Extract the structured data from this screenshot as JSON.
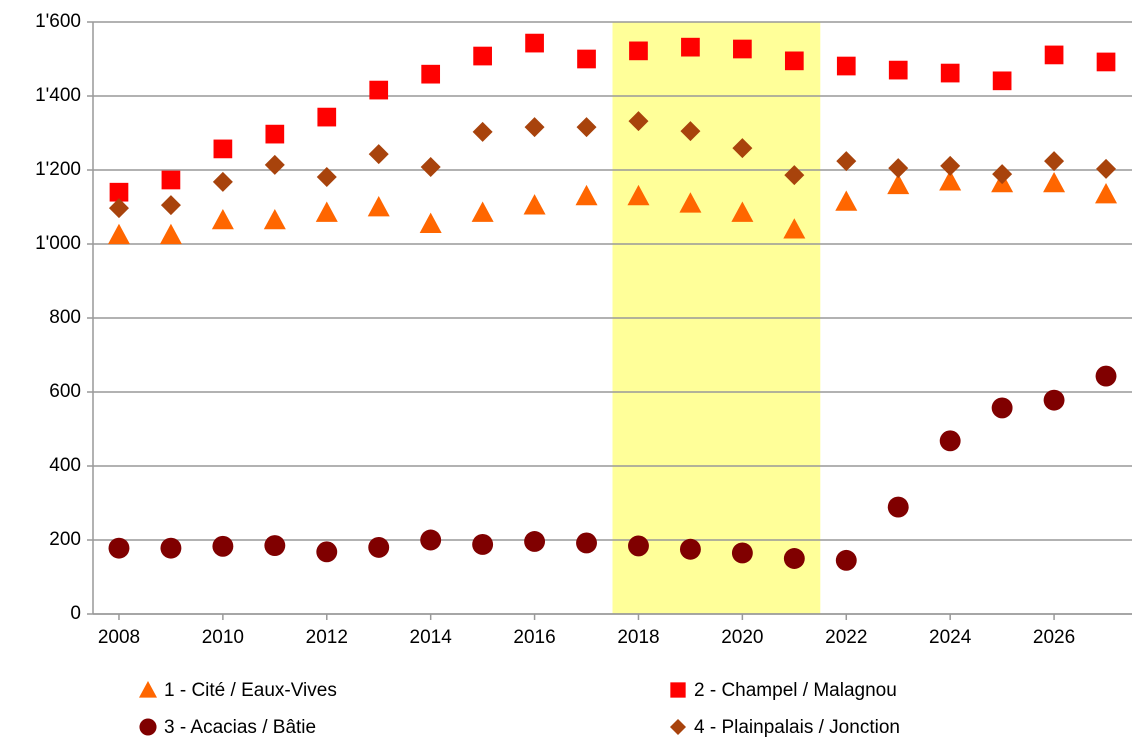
{
  "chart_data": {
    "type": "scatter",
    "x": [
      2008,
      2009,
      2010,
      2011,
      2012,
      2013,
      2014,
      2015,
      2016,
      2017,
      2018,
      2019,
      2020,
      2021,
      2022,
      2023,
      2024,
      2025,
      2026,
      2027
    ],
    "series": [
      {
        "name": "1 - Cité / Eaux-Vives",
        "color": "#ff6600",
        "marker": "triangle",
        "values": [
          1025,
          1025,
          1065,
          1065,
          1085,
          1100,
          1055,
          1085,
          1105,
          1130,
          1130,
          1110,
          1085,
          1040,
          1115,
          1160,
          1170,
          1165,
          1165,
          1135
        ]
      },
      {
        "name": "2 - Champel / Malagnou",
        "color": "#ff0000",
        "marker": "square",
        "values": [
          1140,
          1173,
          1257,
          1297,
          1343,
          1416,
          1459,
          1508,
          1543,
          1500,
          1522,
          1532,
          1527,
          1495,
          1481,
          1470,
          1462,
          1441,
          1511,
          1492
        ]
      },
      {
        "name": "3 - Acacias / Bâtie",
        "color": "#800000",
        "marker": "circle",
        "values": [
          178,
          178,
          183,
          185,
          168,
          180,
          200,
          188,
          196,
          192,
          184,
          175,
          165,
          150,
          145,
          289,
          468,
          557,
          578,
          643
        ]
      },
      {
        "name": "4 - Plainpalais / Jonction",
        "color": "#a8430c",
        "marker": "diamond",
        "values": [
          1097,
          1105,
          1168,
          1214,
          1181,
          1243,
          1208,
          1303,
          1316,
          1316,
          1332,
          1305,
          1259,
          1186,
          1224,
          1205,
          1211,
          1189,
          1224,
          1203
        ]
      }
    ],
    "xlim": [
      2007.5,
      2027.5
    ],
    "xticks": [
      2008,
      2010,
      2012,
      2014,
      2016,
      2018,
      2020,
      2022,
      2024,
      2026
    ],
    "ylim": [
      0,
      1600
    ],
    "yticks": [
      0,
      200,
      400,
      600,
      800,
      {
        "value": 1000,
        "label": "1'000"
      },
      {
        "value": 1200,
        "label": "1'200"
      },
      {
        "value": 1400,
        "label": "1'400"
      },
      {
        "value": 1600,
        "label": "1'600"
      }
    ],
    "grid": true,
    "highlight": {
      "x": [
        2017.5,
        2021.5
      ],
      "color": "#ffff99"
    },
    "legend": "bottom"
  }
}
